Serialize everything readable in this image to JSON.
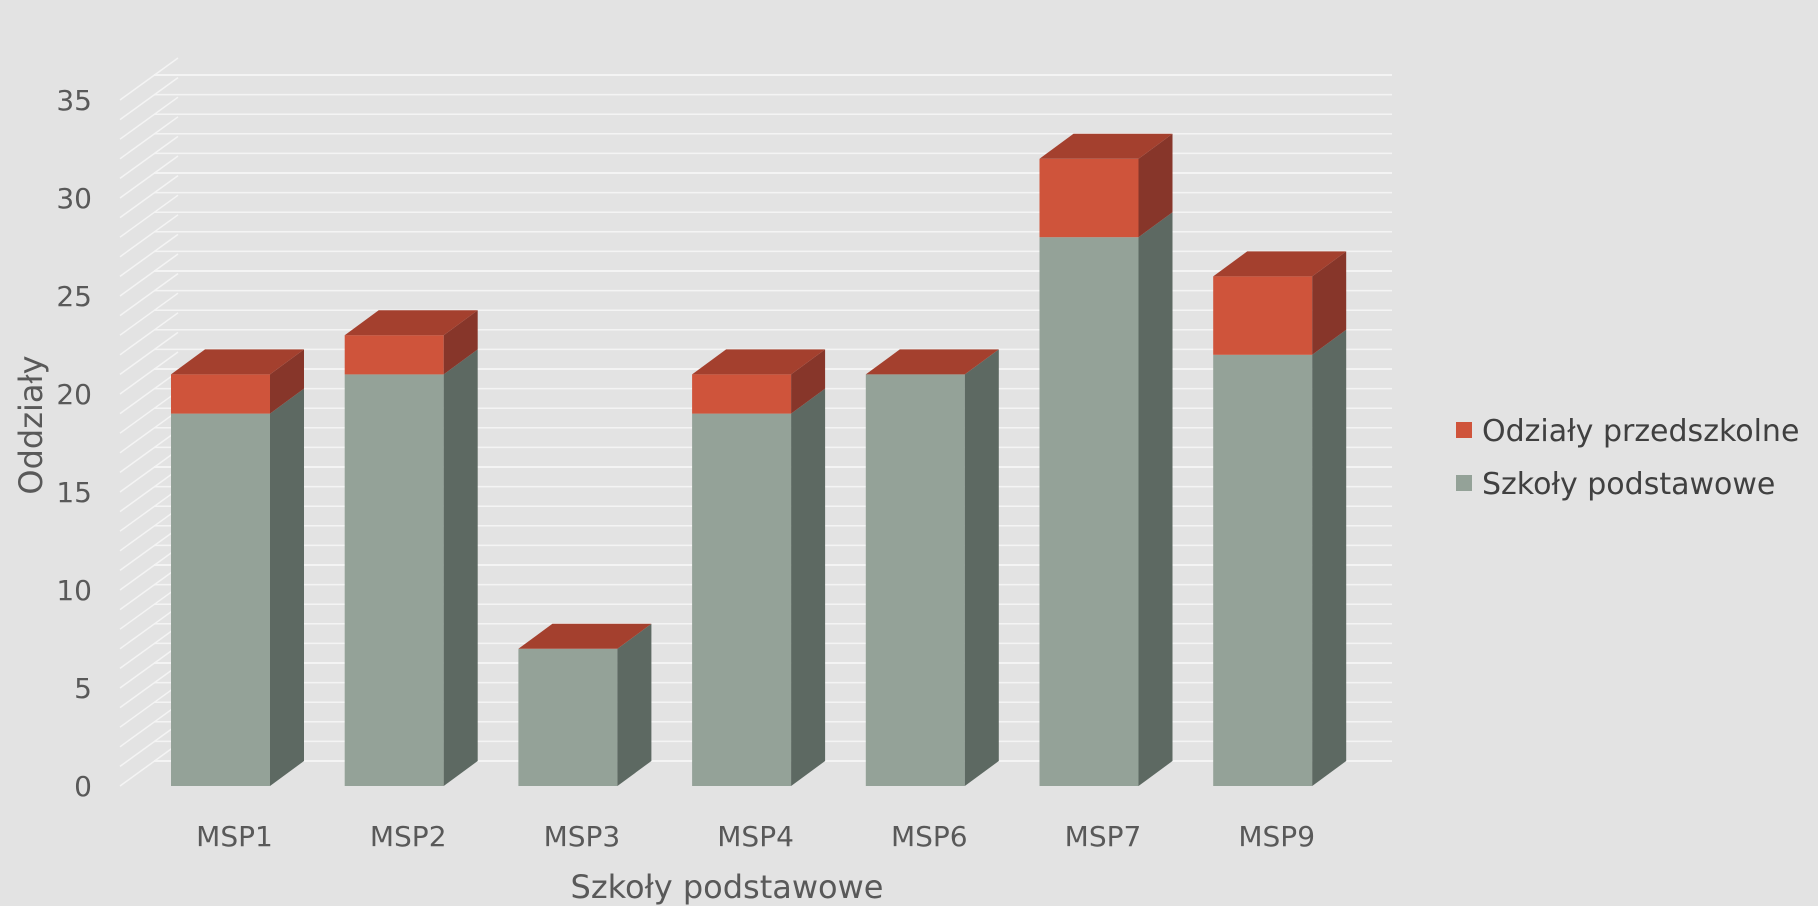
{
  "chart_data": {
    "type": "bar",
    "stacked": true,
    "three_d": true,
    "categories": [
      "MSP1",
      "MSP2",
      "MSP3",
      "MSP4",
      "MSP6",
      "MSP7",
      "MSP9"
    ],
    "series": [
      {
        "name": "Szkoły podstawowe",
        "values": [
          19,
          21,
          7,
          19,
          21,
          28,
          22
        ],
        "color": "#94a298",
        "side_color": "#5d6962"
      },
      {
        "name": "Odziały przedszkolne",
        "values": [
          2,
          2,
          0,
          2,
          0,
          4,
          4
        ],
        "color": "#cf543b",
        "side_color": "#87362a",
        "top_color": "#a4402e"
      }
    ],
    "xlabel": "Szkoły podstawowe",
    "ylabel": "Oddziały",
    "ylim": [
      0,
      35
    ],
    "yticks": [
      0,
      5,
      10,
      15,
      20,
      25,
      30,
      35
    ],
    "grid": true,
    "legend_position": "right"
  }
}
